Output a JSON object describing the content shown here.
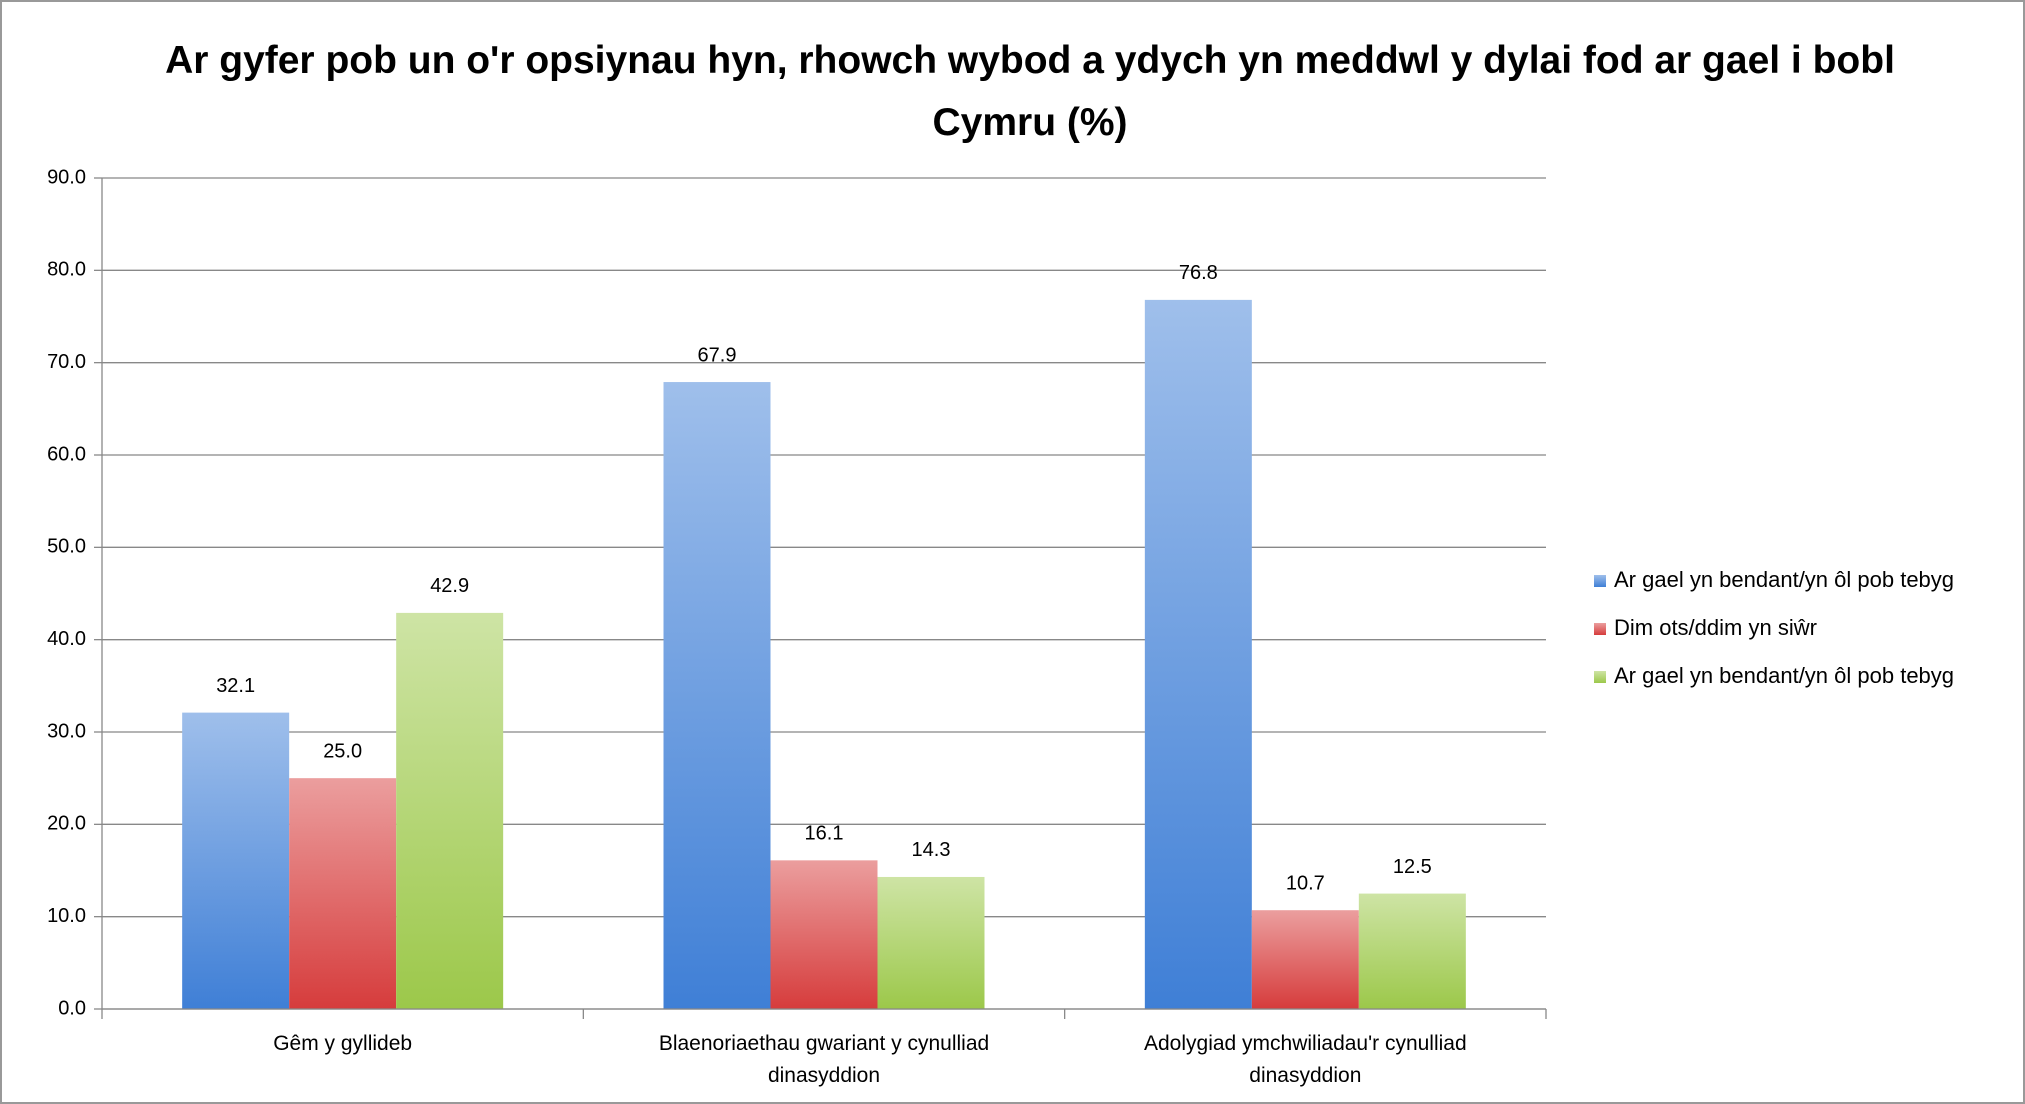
{
  "chart_data": {
    "type": "bar",
    "title": "Ar gyfer pob un o'r opsiynau hyn, rhowch wybod a ydych yn meddwl y dylai fod ar gael i bobl Cymru (%)",
    "categories": [
      "Gêm y gyllideb",
      "Blaenoriaethau gwariant y cynulliad dinasyddion",
      "Adolygiad ymchwiliadau'r cynulliad dinasyddion"
    ],
    "series": [
      {
        "name": "Ar gael yn bendant/yn ôl pob tebyg",
        "color": "#3f7fd6",
        "values": [
          32.1,
          67.9,
          76.8
        ],
        "value_labels": [
          "32.1",
          "67.9",
          "76.8"
        ]
      },
      {
        "name": "Dim ots/ddim yn siŵr",
        "color": "#d63c3c",
        "values": [
          25.0,
          16.1,
          10.7
        ],
        "value_labels": [
          "25.0",
          "16.1",
          "10.7"
        ]
      },
      {
        "name": "Ar gael yn bendant/yn ôl pob tebyg",
        "color": "#9cc84a",
        "values": [
          42.9,
          14.3,
          12.5
        ],
        "value_labels": [
          "42.9",
          "14.3",
          "12.5"
        ]
      }
    ],
    "ylim": [
      0,
      90
    ],
    "yticks": [
      {
        "value": 0,
        "label": "0.0"
      },
      {
        "value": 10,
        "label": "10.0"
      },
      {
        "value": 20,
        "label": "20.0"
      },
      {
        "value": 30,
        "label": "30.0"
      },
      {
        "value": 40,
        "label": "40.0"
      },
      {
        "value": 50,
        "label": "50.0"
      },
      {
        "value": 60,
        "label": "60.0"
      },
      {
        "value": 70,
        "label": "70.0"
      },
      {
        "value": 80,
        "label": "80.0"
      },
      {
        "value": 90,
        "label": "90.0"
      }
    ],
    "grid": true,
    "legend": "right"
  }
}
